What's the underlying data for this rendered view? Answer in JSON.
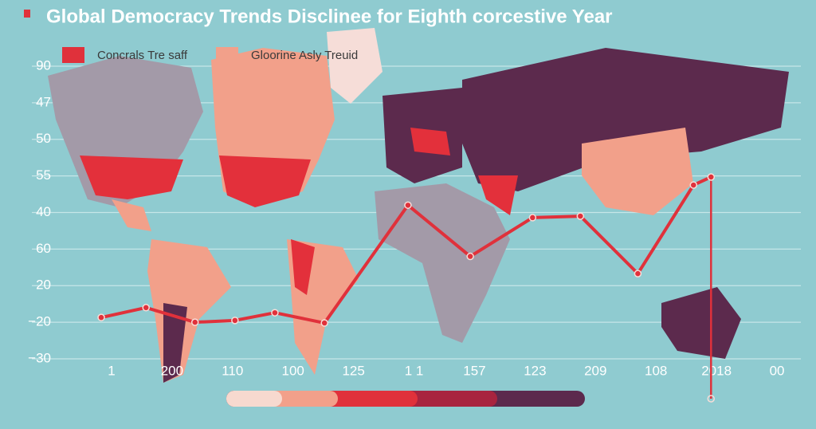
{
  "chart_data": {
    "type": "line",
    "title": "Global Democracy Trends Disclinee for Eighth corcestive Year",
    "legend": [
      {
        "name": "Concrals Tre saff",
        "color": "#e0313b"
      },
      {
        "name": "Gloorine Asly Treuid",
        "color": "#f2a08a"
      }
    ],
    "xlim": [
      -0.5,
      11.5
    ],
    "xticks": [
      {
        "value": 0,
        "label": "1"
      },
      {
        "value": 1,
        "label": "200"
      },
      {
        "value": 2,
        "label": "110"
      },
      {
        "value": 3,
        "label": "100"
      },
      {
        "value": 4,
        "label": "125"
      },
      {
        "value": 5,
        "label": "1 1"
      },
      {
        "value": 6,
        "label": "157"
      },
      {
        "value": 7,
        "label": "123"
      },
      {
        "value": 8,
        "label": "209"
      },
      {
        "value": 9,
        "label": "108"
      },
      {
        "value": 10,
        "label": "2018"
      },
      {
        "value": 11,
        "label": "00"
      }
    ],
    "ylim": [
      0,
      8
    ],
    "yticks": [
      {
        "value": 0,
        "label": "−30"
      },
      {
        "value": 1,
        "label": "−20"
      },
      {
        "value": 2,
        "label": "20"
      },
      {
        "value": 3,
        "label": "60"
      },
      {
        "value": 4,
        "label": "40"
      },
      {
        "value": 5,
        "label": "55"
      },
      {
        "value": 6,
        "label": "50"
      },
      {
        "value": 7,
        "label": "47"
      },
      {
        "value": 8,
        "label": "90"
      }
    ],
    "grid": true,
    "series": [
      {
        "color": "#e0313b",
        "x": [
          -0.17,
          0.57,
          1.38,
          2.04,
          2.7,
          3.52,
          4.9,
          5.93,
          6.96,
          7.75,
          8.7,
          9.62,
          9.91
        ],
        "values": [
          1.13,
          1.4,
          1.0,
          1.05,
          1.26,
          0.98,
          4.2,
          2.8,
          3.86,
          3.9,
          2.33,
          4.75,
          4.97
        ]
      }
    ]
  }
}
